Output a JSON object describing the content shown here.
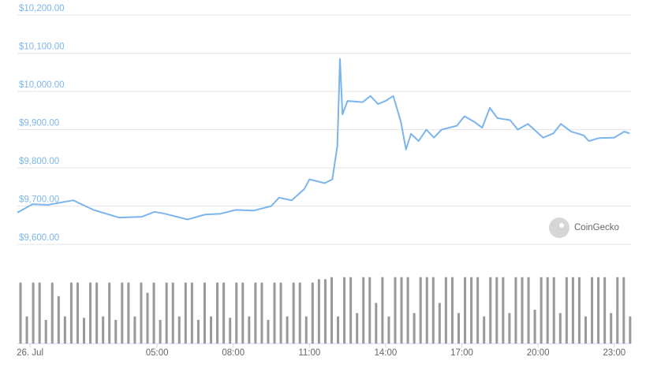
{
  "chart_data": [
    {
      "type": "line",
      "watermark": "CoinGecko",
      "color": "#7cb5ec",
      "grid": true,
      "xlim": [
        -0.5,
        23.66
      ],
      "ylim": [
        9600,
        10200
      ],
      "yticks": [
        {
          "value": 9600,
          "label": "$9,600.00"
        },
        {
          "value": 9700,
          "label": "$9,700.00"
        },
        {
          "value": 9800,
          "label": "$9,800.00"
        },
        {
          "value": 9900,
          "label": "$9,900.00"
        },
        {
          "value": 10000,
          "label": "$10,000.00"
        },
        {
          "value": 10100,
          "label": "$10,100.00"
        },
        {
          "value": 10200,
          "label": "$10,200.00"
        }
      ],
      "x": [
        -0.5,
        0.1,
        0.7,
        1.7,
        2.5,
        3.5,
        4.4,
        4.9,
        5.3,
        6.2,
        6.9,
        7.5,
        8.1,
        8.8,
        9.5,
        9.8,
        10.3,
        10.8,
        11.0,
        11.6,
        11.9,
        12.1,
        12.2,
        12.3,
        12.5,
        13.1,
        13.4,
        13.7,
        14.0,
        14.3,
        14.6,
        14.8,
        15.0,
        15.3,
        15.6,
        15.9,
        16.2,
        16.8,
        17.1,
        17.5,
        17.8,
        18.1,
        18.4,
        18.9,
        19.2,
        19.6,
        20.2,
        20.6,
        20.9,
        21.3,
        21.8,
        22.0,
        22.4,
        23.0,
        23.4,
        23.6
      ],
      "values": [
        9683,
        9705,
        9703,
        9715,
        9690,
        9670,
        9672,
        9685,
        9680,
        9665,
        9678,
        9680,
        9690,
        9688,
        9700,
        9722,
        9715,
        9745,
        9770,
        9760,
        9770,
        9858,
        10085,
        9940,
        9975,
        9972,
        9988,
        9967,
        9975,
        9988,
        9920,
        9848,
        9889,
        9870,
        9900,
        9879,
        9900,
        9910,
        9935,
        9920,
        9905,
        9957,
        9930,
        9925,
        9900,
        9915,
        9879,
        9890,
        9915,
        9895,
        9885,
        9870,
        9878,
        9879,
        9895,
        9890
      ]
    },
    {
      "type": "bar",
      "color": "#999999",
      "xlim": [
        -0.5,
        23.66
      ],
      "ylim": [
        0,
        100
      ],
      "xticks": [
        {
          "value": 0,
          "label": "26. Jul"
        },
        {
          "value": 5,
          "label": "05:00"
        },
        {
          "value": 8,
          "label": "08:00"
        },
        {
          "value": 11,
          "label": "11:00"
        },
        {
          "value": 14,
          "label": "14:00"
        },
        {
          "value": 17,
          "label": "17:00"
        },
        {
          "value": 20,
          "label": "20:00"
        },
        {
          "value": 23,
          "label": "23:00"
        }
      ],
      "x": [
        -0.5,
        -0.25,
        0,
        0.25,
        0.5,
        0.75,
        1,
        1.25,
        1.5,
        1.75,
        2,
        2.25,
        2.5,
        2.75,
        3,
        3.25,
        3.5,
        3.75,
        4,
        4.25,
        4.5,
        4.75,
        5,
        5.25,
        5.5,
        5.75,
        6,
        6.25,
        6.5,
        6.75,
        7,
        7.25,
        7.5,
        7.75,
        8,
        8.25,
        8.5,
        8.75,
        9,
        9.25,
        9.5,
        9.75,
        10,
        10.25,
        10.5,
        10.75,
        11,
        11.25,
        11.5,
        11.75,
        12,
        12.25,
        12.5,
        12.75,
        13,
        13.25,
        13.5,
        13.75,
        14,
        14.25,
        14.5,
        14.75,
        15,
        15.25,
        15.5,
        15.75,
        16,
        16.25,
        16.5,
        16.75,
        17,
        17.25,
        17.5,
        17.75,
        18,
        18.25,
        18.5,
        18.75,
        19,
        19.25,
        19.5,
        19.75,
        20,
        20.25,
        20.5,
        20.75,
        21,
        21.25,
        21.5,
        21.75,
        22,
        22.25,
        22.5,
        22.75,
        23,
        23.25,
        23.5
      ],
      "values": [
        90,
        40,
        90,
        90,
        35,
        90,
        70,
        40,
        90,
        90,
        38,
        90,
        90,
        40,
        90,
        35,
        90,
        90,
        40,
        90,
        75,
        90,
        35,
        90,
        90,
        40,
        90,
        90,
        35,
        90,
        40,
        90,
        90,
        38,
        90,
        90,
        40,
        90,
        90,
        35,
        90,
        90,
        40,
        90,
        90,
        40,
        90,
        95,
        95,
        98,
        40,
        98,
        98,
        45,
        98,
        98,
        60,
        98,
        40,
        98,
        98,
        98,
        45,
        98,
        98,
        98,
        60,
        98,
        98,
        45,
        98,
        98,
        98,
        40,
        98,
        98,
        98,
        45,
        98,
        98,
        98,
        50,
        98,
        98,
        98,
        45,
        98,
        98,
        98,
        40,
        98,
        98,
        98,
        45,
        98,
        98,
        40
      ]
    }
  ]
}
